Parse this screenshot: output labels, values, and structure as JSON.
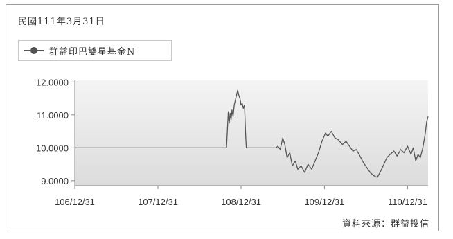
{
  "header": {
    "date": "民國111年3月31日"
  },
  "source": "資料來源：群益投信",
  "chart_data": {
    "type": "line",
    "series": [
      {
        "name": "群益印巴雙星基金N",
        "color": "#555555",
        "points": [
          [
            "2017-12-31",
            10.0
          ],
          [
            "2018-06-30",
            10.0
          ],
          [
            "2018-12-31",
            10.0
          ],
          [
            "2019-06-30",
            10.0
          ],
          [
            "2019-10-01",
            10.0
          ],
          [
            "2019-10-15",
            10.0
          ],
          [
            "2019-10-28",
            10.0
          ],
          [
            "2019-11-01",
            10.55
          ],
          [
            "2019-11-05",
            11.1
          ],
          [
            "2019-11-09",
            10.75
          ],
          [
            "2019-11-13",
            11.05
          ],
          [
            "2019-11-17",
            10.85
          ],
          [
            "2019-11-21",
            11.15
          ],
          [
            "2019-11-26",
            10.95
          ],
          [
            "2019-12-01",
            11.3
          ],
          [
            "2019-12-06",
            11.45
          ],
          [
            "2019-12-11",
            11.6
          ],
          [
            "2019-12-16",
            11.75
          ],
          [
            "2019-12-21",
            11.6
          ],
          [
            "2019-12-26",
            11.5
          ],
          [
            "2019-12-31",
            11.3
          ],
          [
            "2020-01-05",
            11.35
          ],
          [
            "2020-01-10",
            11.2
          ],
          [
            "2020-01-15",
            11.3
          ],
          [
            "2020-01-20",
            10.4
          ],
          [
            "2020-01-23",
            10.0
          ],
          [
            "2020-03-01",
            10.0
          ],
          [
            "2020-04-01",
            10.0
          ],
          [
            "2020-05-01",
            10.0
          ],
          [
            "2020-05-20",
            10.0
          ],
          [
            "2020-06-01",
            10.0
          ],
          [
            "2020-06-10",
            10.05
          ],
          [
            "2020-06-20",
            9.95
          ],
          [
            "2020-07-01",
            10.3
          ],
          [
            "2020-07-10",
            10.1
          ],
          [
            "2020-07-20",
            9.7
          ],
          [
            "2020-08-01",
            9.85
          ],
          [
            "2020-08-12",
            9.45
          ],
          [
            "2020-08-25",
            9.6
          ],
          [
            "2020-09-05",
            9.35
          ],
          [
            "2020-09-20",
            9.45
          ],
          [
            "2020-10-05",
            9.25
          ],
          [
            "2020-10-20",
            9.5
          ],
          [
            "2020-11-05",
            9.35
          ],
          [
            "2020-11-20",
            9.6
          ],
          [
            "2020-12-05",
            9.85
          ],
          [
            "2020-12-20",
            10.2
          ],
          [
            "2021-01-05",
            10.45
          ],
          [
            "2021-01-15",
            10.35
          ],
          [
            "2021-01-30",
            10.5
          ],
          [
            "2021-02-15",
            10.3
          ],
          [
            "2021-03-01",
            10.25
          ],
          [
            "2021-03-20",
            10.1
          ],
          [
            "2021-04-05",
            10.2
          ],
          [
            "2021-04-20",
            10.05
          ],
          [
            "2021-05-05",
            9.9
          ],
          [
            "2021-05-20",
            9.95
          ],
          [
            "2021-06-05",
            9.75
          ],
          [
            "2021-06-20",
            9.55
          ],
          [
            "2021-07-05",
            9.4
          ],
          [
            "2021-07-20",
            9.25
          ],
          [
            "2021-08-05",
            9.15
          ],
          [
            "2021-08-20",
            9.1
          ],
          [
            "2021-09-01",
            9.25
          ],
          [
            "2021-09-15",
            9.45
          ],
          [
            "2021-10-01",
            9.7
          ],
          [
            "2021-10-15",
            9.8
          ],
          [
            "2021-11-01",
            9.9
          ],
          [
            "2021-11-15",
            9.75
          ],
          [
            "2021-12-01",
            9.95
          ],
          [
            "2021-12-15",
            9.85
          ],
          [
            "2021-12-31",
            10.05
          ],
          [
            "2022-01-15",
            9.8
          ],
          [
            "2022-01-25",
            10.0
          ],
          [
            "2022-02-05",
            9.6
          ],
          [
            "2022-02-15",
            9.8
          ],
          [
            "2022-02-25",
            9.7
          ],
          [
            "2022-03-08",
            10.0
          ],
          [
            "2022-03-18",
            10.4
          ],
          [
            "2022-03-25",
            10.8
          ],
          [
            "2022-03-31",
            10.95
          ]
        ]
      }
    ],
    "yticks": [
      "12.0000",
      "11.0000",
      "10.0000",
      "9.0000"
    ],
    "ytick_values": [
      12,
      11,
      10,
      9
    ],
    "ylim": [
      8.85,
      12.05
    ],
    "xticks": [
      "106/12/31",
      "107/12/31",
      "108/12/31",
      "109/12/31",
      "110/12/31"
    ],
    "xtick_dates": [
      "2017-12-31",
      "2018-12-31",
      "2019-12-31",
      "2020-12-31",
      "2021-12-31"
    ],
    "xlim": [
      "2017-12-31",
      "2022-03-31"
    ],
    "grid": false,
    "legend": "top-left",
    "colors": {
      "plot_bg_top": "#f4f4f4",
      "plot_bg_bottom": "#dcdcdc",
      "axis": "#888888"
    }
  }
}
